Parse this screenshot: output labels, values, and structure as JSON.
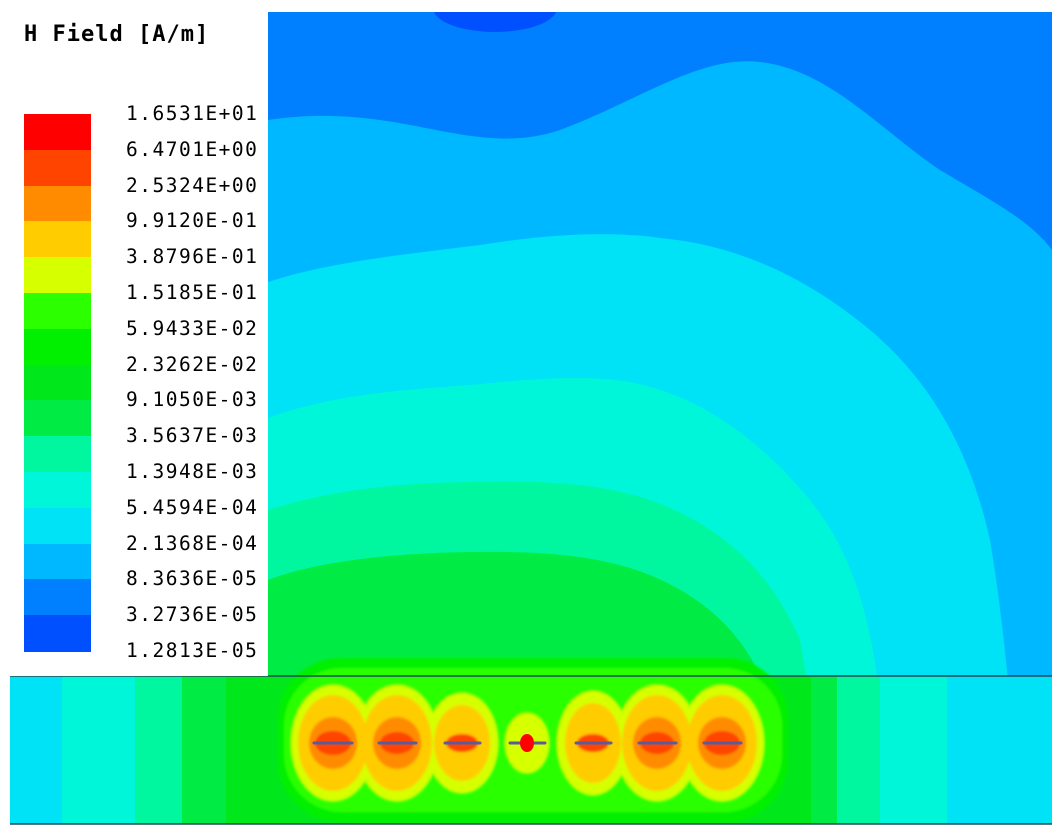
{
  "chart_data": {
    "type": "heatmap",
    "title": "H Field [A/m]",
    "legend_position": "top-left",
    "scale": "log",
    "levels": [
      "1.6531E+01",
      "6.4701E+00",
      "2.5324E+00",
      "9.9120E-01",
      "3.8796E-01",
      "1.5185E-01",
      "5.9433E-02",
      "2.3262E-02",
      "9.1050E-03",
      "3.5637E-03",
      "1.3948E-03",
      "5.4594E-04",
      "2.1368E-04",
      "8.3636E-05",
      "3.2736E-05",
      "1.2813E-05"
    ],
    "colors": [
      "#ff0000",
      "#ff4400",
      "#ff8c00",
      "#ffcc00",
      "#d6ff00",
      "#2cff00",
      "#00f000",
      "#00e81c",
      "#00ec44",
      "#00f7a0",
      "#00f6d8",
      "#00e2f6",
      "#00b8ff",
      "#0080ff",
      "#0050ff",
      "#0018ff"
    ],
    "sources": 7
  }
}
